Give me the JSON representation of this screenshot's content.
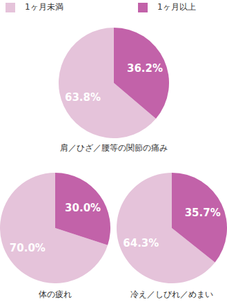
{
  "chart_data": [
    {
      "type": "pie",
      "title": "肩／ひざ／腰等の関節の痛み",
      "categories": [
        "1ヶ月未満",
        "1ヶ月以上"
      ],
      "values": [
        63.8,
        36.2
      ],
      "value_labels": [
        "63.8%",
        "36.2%"
      ],
      "colors": [
        "#e5c3da",
        "#c262a9"
      ],
      "data_labels": true,
      "legend": "top"
    },
    {
      "type": "pie",
      "title": "体の疲れ",
      "categories": [
        "1ヶ月未満",
        "1ヶ月以上"
      ],
      "values": [
        70.0,
        30.0
      ],
      "value_labels": [
        "70.0%",
        "30.0%"
      ],
      "colors": [
        "#e5c3da",
        "#c262a9"
      ],
      "data_labels": true
    },
    {
      "type": "pie",
      "title": "冷え／しびれ／めまい",
      "categories": [
        "1ヶ月未満",
        "1ヶ月以上"
      ],
      "values": [
        64.3,
        35.7
      ],
      "value_labels": [
        "64.3%",
        "35.7%"
      ],
      "colors": [
        "#e5c3da",
        "#c262a9"
      ],
      "data_labels": true
    }
  ]
}
